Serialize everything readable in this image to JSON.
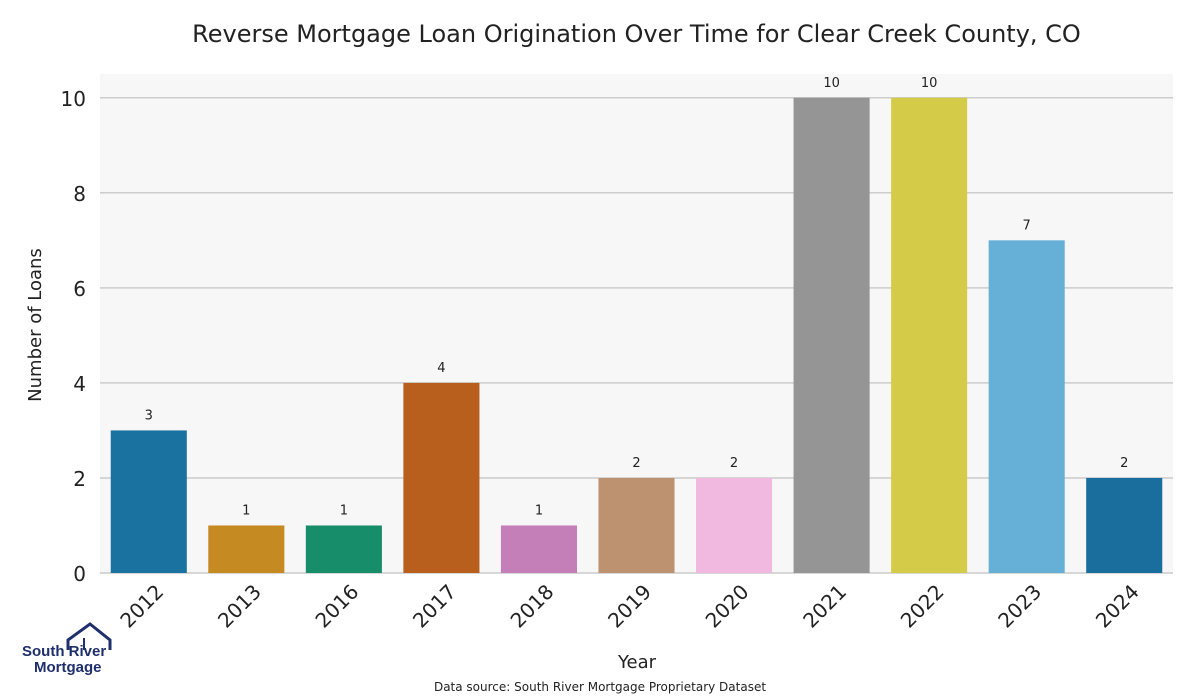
{
  "chart_data": {
    "type": "bar",
    "title": "Reverse Mortgage Loan Origination Over Time for Clear Creek County, CO",
    "xlabel": "Year",
    "ylabel": "Number of Loans",
    "categories": [
      "2012",
      "2013",
      "2016",
      "2017",
      "2018",
      "2019",
      "2020",
      "2021",
      "2022",
      "2023",
      "2024"
    ],
    "values": [
      3,
      1,
      1,
      4,
      1,
      2,
      2,
      10,
      10,
      7,
      2
    ],
    "bar_colors": [
      "#1a72a1",
      "#c68a22",
      "#178d6a",
      "#b95f1e",
      "#c47fb8",
      "#bd9270",
      "#f1b8e0",
      "#959595",
      "#d4cc48",
      "#66b0d8",
      "#1a6e9e"
    ],
    "ylim": [
      0,
      10.5
    ],
    "yticks": [
      0,
      2,
      4,
      6,
      8,
      10
    ],
    "grid": true,
    "background": "#f7f7f7",
    "source": "Data source: South River Mortgage Proprietary Dataset"
  },
  "logo": {
    "line1": "South River",
    "line2": "Mortgage"
  }
}
